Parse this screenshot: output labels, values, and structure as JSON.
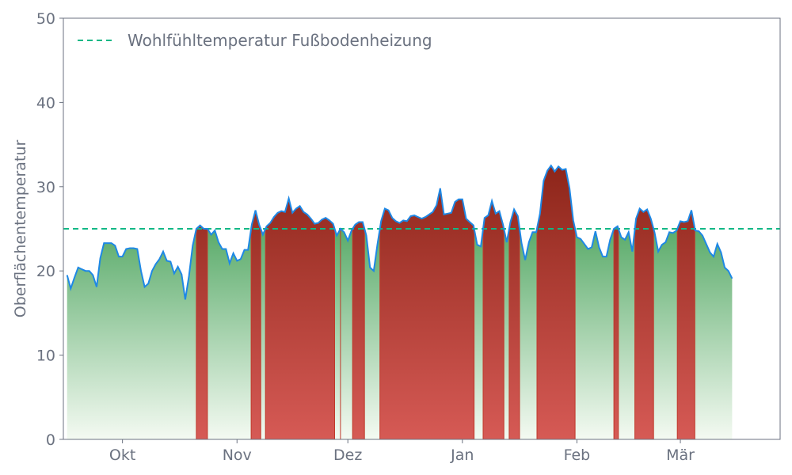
{
  "chart_data": {
    "type": "area",
    "title": "",
    "xlabel": "",
    "ylabel": "Oberflächentemperatur",
    "ylim": [
      0,
      50
    ],
    "yticks": [
      0,
      10,
      20,
      30,
      40,
      50
    ],
    "xlim": [
      "2024-09-15",
      "2025-03-28"
    ],
    "xticks": [
      {
        "date": "2024-10-01",
        "label": "Okt"
      },
      {
        "date": "2024-11-01",
        "label": "Nov"
      },
      {
        "date": "2024-12-01",
        "label": "Dez"
      },
      {
        "date": "2025-01-01",
        "label": "Jan"
      },
      {
        "date": "2025-02-01",
        "label": "Feb"
      },
      {
        "date": "2025-03-01",
        "label": "Mär"
      }
    ],
    "grid": false,
    "legend": {
      "placement": "top-left",
      "entries": [
        "Wohlfühltemperatur Fußbodenheizung"
      ]
    },
    "threshold": {
      "name": "Wohlfühltemperatur Fußbodenheizung",
      "value": 25,
      "style": "dashed"
    },
    "series": [
      {
        "type": "line",
        "x_start": "2024-09-16",
        "x_step_days": 1,
        "values": [
          19.5,
          17.9,
          19.2,
          20.4,
          20.2,
          20.0,
          20.0,
          19.5,
          18.1,
          21.5,
          23.3,
          23.3,
          23.3,
          23.0,
          21.7,
          21.7,
          22.6,
          22.7,
          22.7,
          22.6,
          20.0,
          18.1,
          18.5,
          20.0,
          20.8,
          21.4,
          22.3,
          21.2,
          21.1,
          19.7,
          20.5,
          19.6,
          16.6,
          19.4,
          23.0,
          25.0,
          25.4,
          25.0,
          25.0,
          24.3,
          24.8,
          23.4,
          22.6,
          22.6,
          20.9,
          22.1,
          21.2,
          21.4,
          22.5,
          22.5,
          25.5,
          27.2,
          25.5,
          24.3,
          25.3,
          25.7,
          26.4,
          26.9,
          27.1,
          27.0,
          28.6,
          26.9,
          27.4,
          27.7,
          27.0,
          26.7,
          26.2,
          25.6,
          25.7,
          26.1,
          26.3,
          26.0,
          25.6,
          24.2,
          25.0,
          24.6,
          23.6,
          24.8,
          25.5,
          25.8,
          25.8,
          24.2,
          20.4,
          20.0,
          23.1,
          25.9,
          27.4,
          27.2,
          26.3,
          25.9,
          25.7,
          26.0,
          25.9,
          26.5,
          26.6,
          26.4,
          26.2,
          26.4,
          26.7,
          27.0,
          27.8,
          29.8,
          26.7,
          26.8,
          26.9,
          28.2,
          28.5,
          28.5,
          26.2,
          25.8,
          25.4,
          23.1,
          22.9,
          26.3,
          26.6,
          28.3,
          26.8,
          27.1,
          25.5,
          23.4,
          25.8,
          27.3,
          26.5,
          23.3,
          21.3,
          23.4,
          24.6,
          24.6,
          26.8,
          30.7,
          31.9,
          32.5,
          31.8,
          32.4,
          32.0,
          32.1,
          29.8,
          26.0,
          24.0,
          23.8,
          23.2,
          22.6,
          22.8,
          24.7,
          22.8,
          21.7,
          21.7,
          23.7,
          25.0,
          25.3,
          24.0,
          23.7,
          24.6,
          22.3,
          26.2,
          27.4,
          27.0,
          27.3,
          26.2,
          24.6,
          22.3,
          23.1,
          23.4,
          24.6,
          24.5,
          24.8,
          25.9,
          25.8,
          25.9,
          27.2,
          24.8,
          24.7,
          24.2,
          23.2,
          22.2,
          21.7,
          23.2,
          22.2,
          20.4,
          20.0,
          19.1
        ]
      }
    ],
    "colors": {
      "line": "#1e88e5",
      "threshold": "#12b886",
      "area_below_top": "#5aab6a",
      "area_below_bottom": "#f4faf2",
      "area_above_top": "#8b2418",
      "area_above_bottom": "#d65a55",
      "axis": "#6b7280"
    }
  }
}
